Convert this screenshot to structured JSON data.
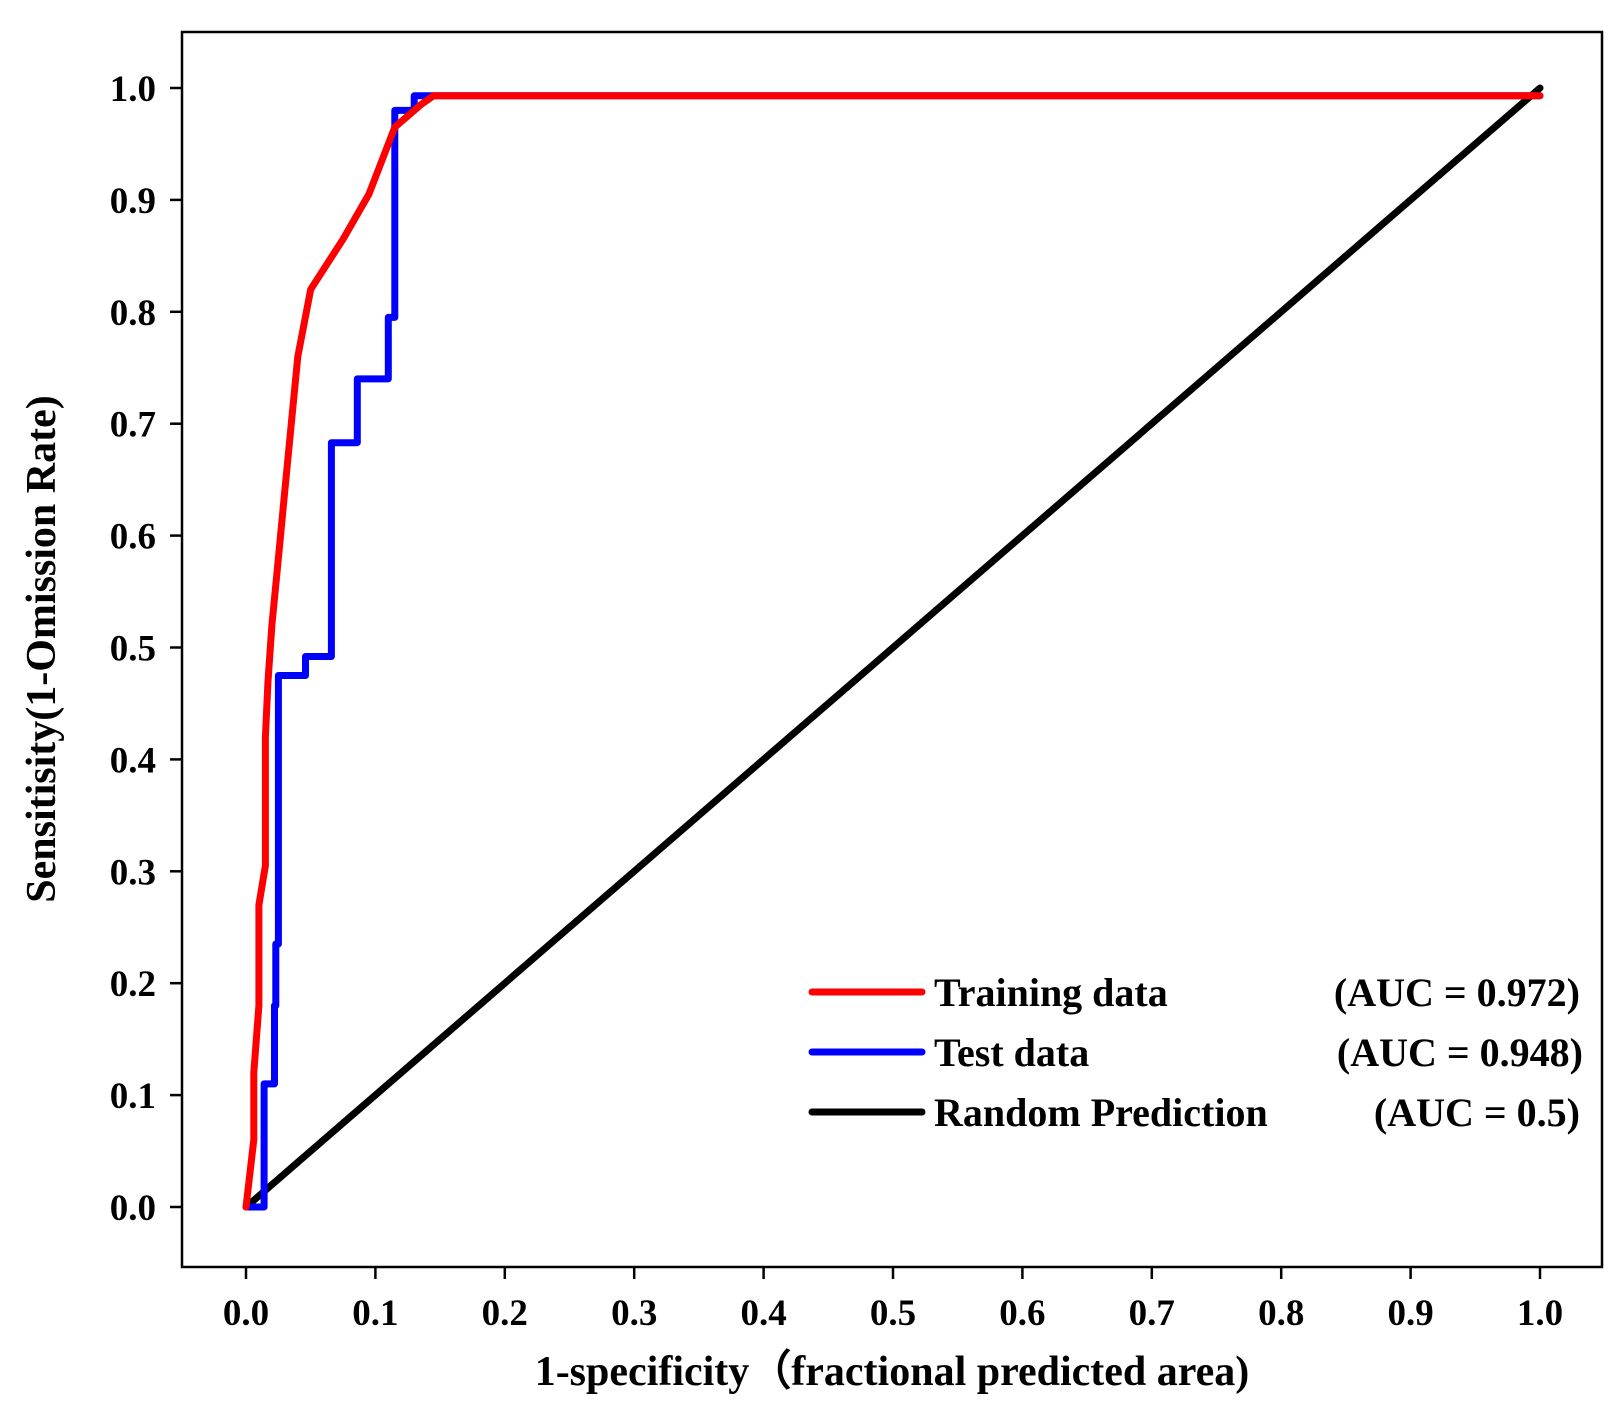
{
  "chart_data": {
    "type": "line",
    "xlabel": "1-specificity（fractional predicted area)",
    "ylabel": "Sensitisity(1-Omission Rate)",
    "xlim": [
      -0.05,
      1.05
    ],
    "ylim": [
      -0.05,
      1.05
    ],
    "x_ticks": [
      0.0,
      0.1,
      0.2,
      0.3,
      0.4,
      0.5,
      0.6,
      0.7,
      0.8,
      0.9,
      1.0
    ],
    "x_tick_labels": [
      "0.0",
      "0.1",
      "0.2",
      "0.3",
      "0.4",
      "0.5",
      "0.6",
      "0.7",
      "0.8",
      "0.9",
      "1.0"
    ],
    "y_ticks": [
      0.0,
      0.1,
      0.2,
      0.3,
      0.4,
      0.5,
      0.6,
      0.7,
      0.8,
      0.9,
      1.0
    ],
    "y_tick_labels": [
      "0.0",
      "0.1",
      "0.2",
      "0.3",
      "0.4",
      "0.5",
      "0.6",
      "0.7",
      "0.8",
      "0.9",
      "1.0"
    ],
    "grid": false,
    "legend_position": "bottom-right",
    "series": [
      {
        "name": "Training data",
        "auc_label": "(AUC = 0.972)",
        "color": "#ff0000",
        "x": [
          0.0,
          0.006,
          0.006,
          0.01,
          0.01,
          0.015,
          0.015,
          0.017,
          0.02,
          0.025,
          0.03,
          0.035,
          0.04,
          0.05,
          0.075,
          0.095,
          0.11,
          0.115,
          0.135,
          0.145,
          1.0
        ],
        "y": [
          0.0,
          0.06,
          0.12,
          0.18,
          0.27,
          0.305,
          0.42,
          0.47,
          0.52,
          0.58,
          0.64,
          0.7,
          0.76,
          0.82,
          0.865,
          0.905,
          0.95,
          0.965,
          0.985,
          0.993,
          0.993
        ]
      },
      {
        "name": "Test data",
        "auc_label": "(AUC = 0.948)",
        "color": "#0000ff",
        "x": [
          0.0,
          0.014,
          0.014,
          0.022,
          0.022,
          0.023,
          0.023,
          0.025,
          0.025,
          0.046,
          0.046,
          0.066,
          0.066,
          0.086,
          0.086,
          0.11,
          0.11,
          0.115,
          0.115,
          0.13,
          0.13,
          1.0
        ],
        "y": [
          0.0,
          0.0,
          0.11,
          0.11,
          0.18,
          0.18,
          0.235,
          0.235,
          0.475,
          0.475,
          0.492,
          0.492,
          0.683,
          0.683,
          0.74,
          0.74,
          0.795,
          0.795,
          0.98,
          0.98,
          0.993,
          0.993
        ]
      },
      {
        "name": "Random Prediction",
        "auc_label": "(AUC = 0.5)",
        "color": "#000000",
        "x": [
          0.0,
          1.0
        ],
        "y": [
          0.0,
          1.0
        ]
      }
    ]
  }
}
